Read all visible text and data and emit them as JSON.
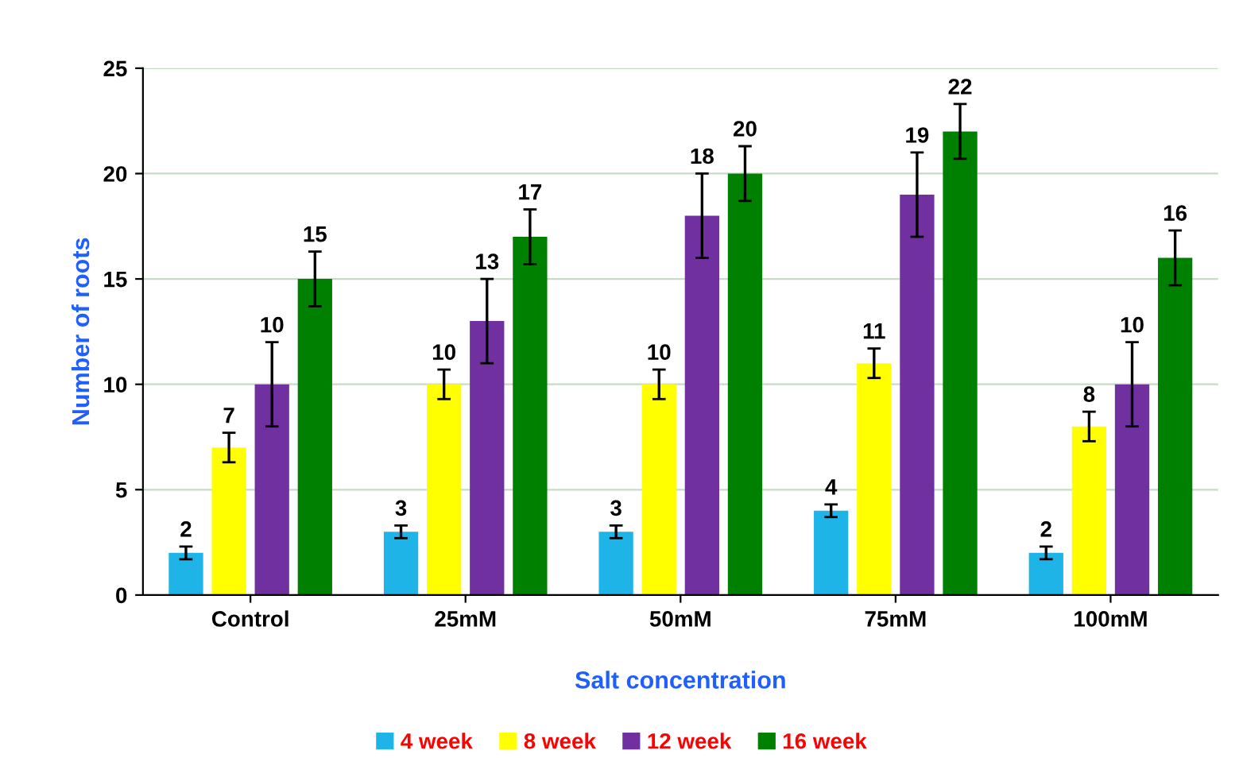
{
  "chart_data": {
    "type": "bar",
    "xlabel": "Salt concentration",
    "ylabel": "Number of roots",
    "categories": [
      "Control",
      "25mM",
      "50mM",
      "75mM",
      "100mM"
    ],
    "series": [
      {
        "name": "4 week",
        "color": "#1fb4e8",
        "values": [
          2,
          3,
          3,
          4,
          2
        ],
        "errors": [
          0.3,
          0.3,
          0.3,
          0.3,
          0.3
        ]
      },
      {
        "name": "8 week",
        "color": "#ffff00",
        "values": [
          7,
          10,
          10,
          11,
          8
        ],
        "errors": [
          0.7,
          0.7,
          0.7,
          0.7,
          0.7
        ]
      },
      {
        "name": "12 week",
        "color": "#7030a0",
        "values": [
          10,
          13,
          18,
          19,
          10
        ],
        "errors": [
          2,
          2,
          2,
          2,
          2
        ]
      },
      {
        "name": "16 week",
        "color": "#008000",
        "values": [
          15,
          17,
          20,
          22,
          16
        ],
        "errors": [
          1.3,
          1.3,
          1.3,
          1.3,
          1.3
        ]
      }
    ],
    "ylim": [
      0,
      25
    ],
    "yticks": [
      0,
      5,
      10,
      15,
      20,
      25
    ],
    "grid": "y",
    "legend": "bottom",
    "data_labels": true
  }
}
